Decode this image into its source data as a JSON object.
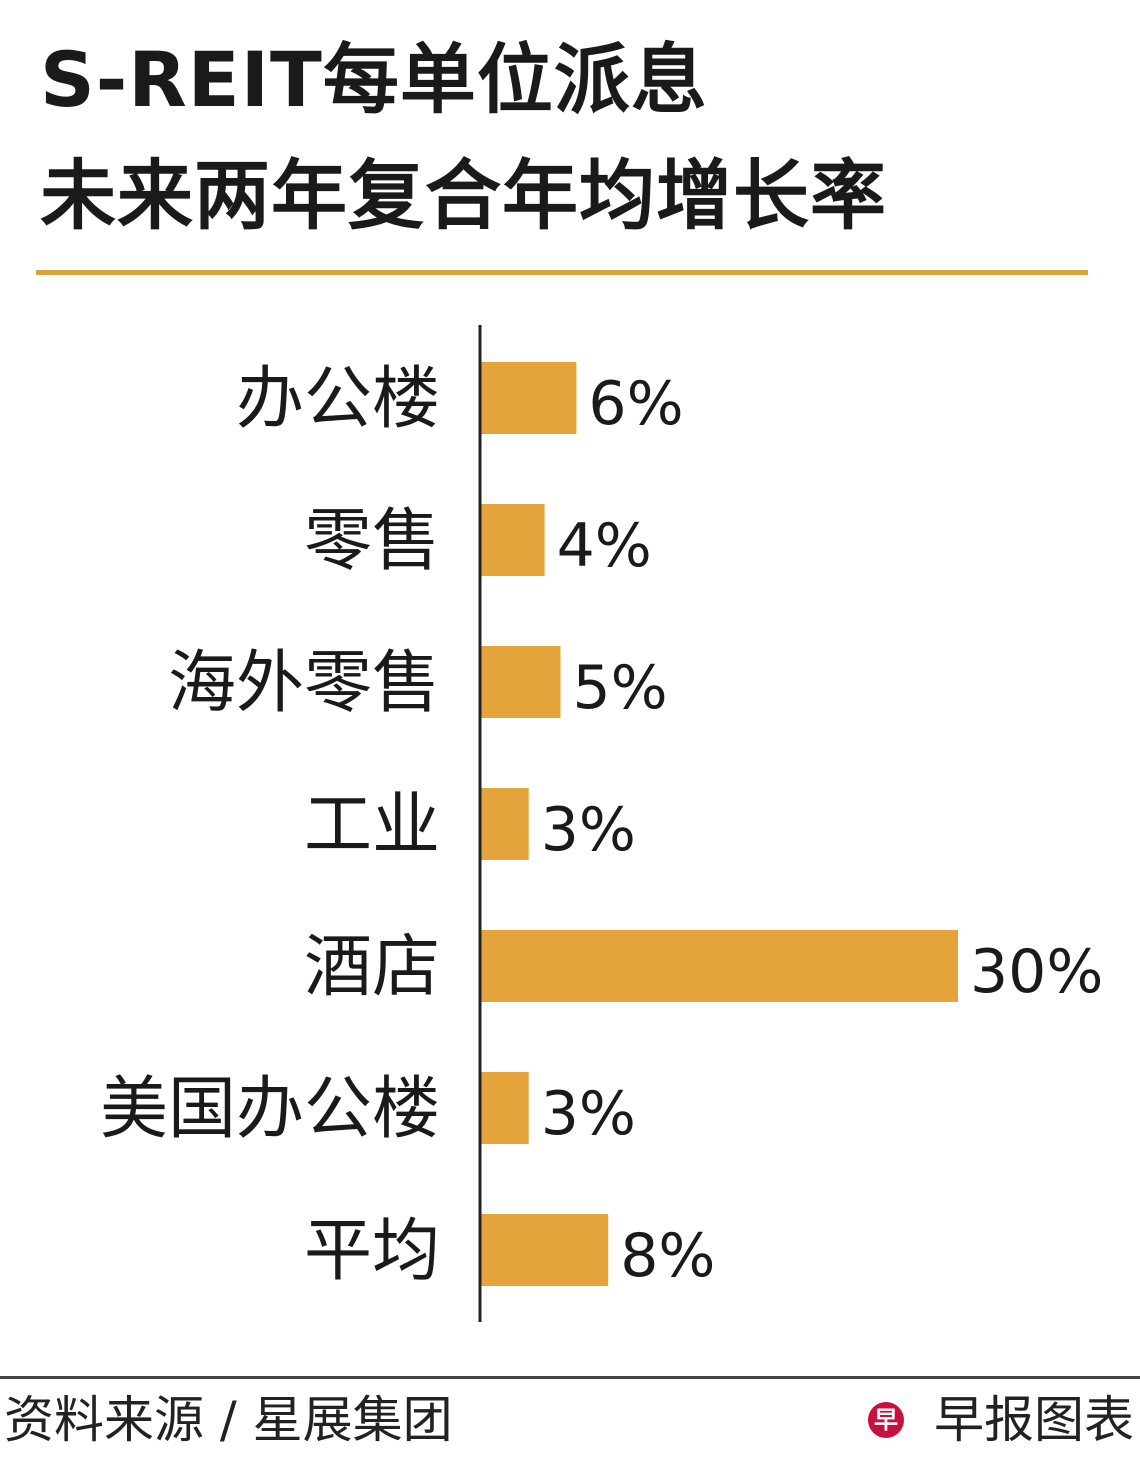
{
  "title_line1": "S-REIT每单位派息",
  "title_line2": "未来两年复合年均增长率",
  "chart_data": {
    "type": "bar",
    "orientation": "horizontal",
    "title": "S-REIT每单位派息未来两年复合年均增长率",
    "categories": [
      "办公楼",
      "零售",
      "海外零售",
      "工业",
      "酒店",
      "美国办公楼",
      "平均"
    ],
    "values": [
      6,
      4,
      5,
      3,
      30,
      3,
      8
    ],
    "data_labels": [
      "6%",
      "4%",
      "5%",
      "3%",
      "30%",
      "3%",
      "8%"
    ],
    "unit": "%",
    "xlim": [
      0,
      30
    ],
    "grid": false,
    "bar_color": "#e5a33c"
  },
  "footer": {
    "source": "资料来源 / 星展集团",
    "brand": "早报图表",
    "logo_text": "早"
  }
}
